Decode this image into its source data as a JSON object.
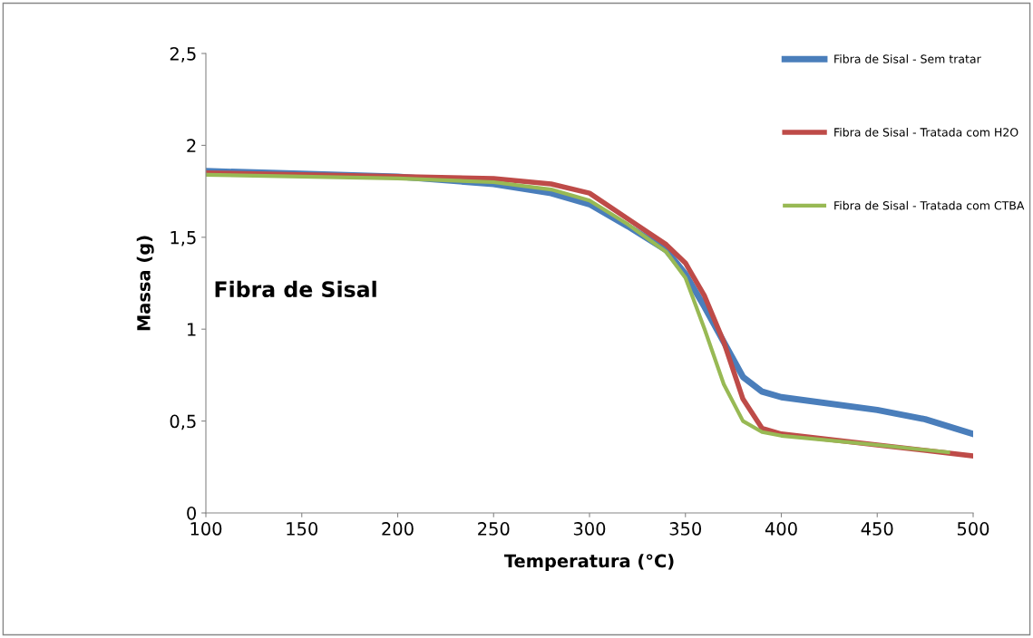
{
  "chart_data": {
    "type": "line",
    "xlabel": "Temperatura (°C)",
    "ylabel": "Massa (g)",
    "annotations": [
      "Fibra de Sisal"
    ],
    "xlim": [
      100,
      500
    ],
    "xticks": [
      100,
      150,
      200,
      250,
      300,
      350,
      400,
      450,
      500
    ],
    "ylim": [
      0,
      2.5
    ],
    "yticks": [
      {
        "value": 0,
        "label": "0"
      },
      {
        "value": 0.5,
        "label": "0,5"
      },
      {
        "value": 1,
        "label": "1"
      },
      {
        "value": 1.5,
        "label": "1,5"
      },
      {
        "value": 2,
        "label": "2"
      },
      {
        "value": 2.5,
        "label": "2,5"
      }
    ],
    "grid": false,
    "legend": "top right",
    "marker": "none",
    "line_style": "solid",
    "series": [
      {
        "name": "Fibra de Sisal - Sem tratar",
        "color": "#4a7ebb",
        "x": [
          100,
          150,
          200,
          250,
          280,
          300,
          320,
          340,
          350,
          360,
          370,
          380,
          390,
          400,
          450,
          475,
          500
        ],
        "values": [
          1.86,
          1.845,
          1.83,
          1.79,
          1.74,
          1.68,
          1.56,
          1.43,
          1.3,
          1.12,
          0.93,
          0.74,
          0.66,
          0.63,
          0.56,
          0.51,
          0.43
        ]
      },
      {
        "name": "Fibra de Sisal - Tratada com H2O",
        "color": "#be4b48",
        "x": [
          100,
          200,
          250,
          280,
          300,
          320,
          340,
          350,
          360,
          370,
          380,
          390,
          400,
          450,
          500
        ],
        "values": [
          1.85,
          1.83,
          1.82,
          1.79,
          1.74,
          1.6,
          1.46,
          1.36,
          1.18,
          0.93,
          0.62,
          0.46,
          0.43,
          0.37,
          0.31
        ]
      },
      {
        "name": "Fibra de Sisal - Tratada com CTBA",
        "color": "#98b954",
        "x": [
          100,
          200,
          250,
          280,
          300,
          320,
          340,
          350,
          360,
          370,
          380,
          390,
          400,
          450,
          487
        ],
        "values": [
          1.84,
          1.82,
          1.8,
          1.76,
          1.7,
          1.57,
          1.42,
          1.28,
          1.0,
          0.7,
          0.5,
          0.44,
          0.42,
          0.37,
          0.33
        ]
      }
    ]
  }
}
